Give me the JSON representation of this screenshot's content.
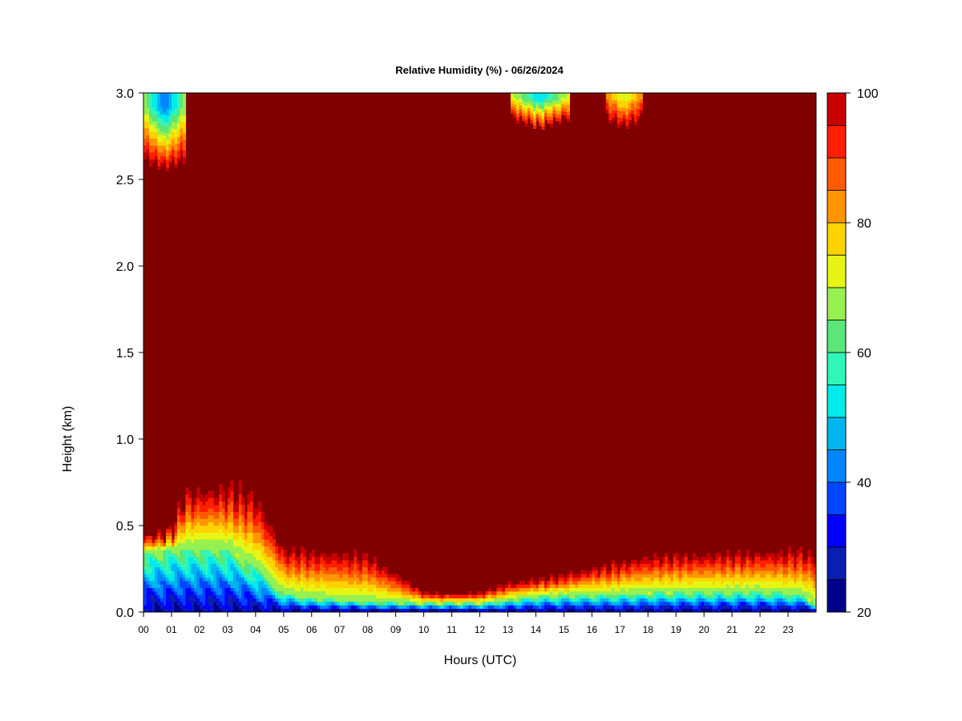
{
  "chart_data": {
    "type": "heatmap",
    "title": "Relative Humidity (%) - 06/26/2024",
    "xlabel": "Hours (UTC)",
    "ylabel": "Height (km)",
    "xlim": [
      0,
      24
    ],
    "ylim": [
      0.0,
      3.0
    ],
    "x_ticks": [
      "00",
      "01",
      "02",
      "03",
      "04",
      "05",
      "06",
      "07",
      "08",
      "09",
      "10",
      "11",
      "12",
      "13",
      "14",
      "15",
      "16",
      "17",
      "18",
      "19",
      "20",
      "21",
      "22",
      "23"
    ],
    "y_ticks": [
      "0.0",
      "0.5",
      "1.0",
      "1.5",
      "2.0",
      "2.5",
      "3.0"
    ],
    "colorbar": {
      "levels": [
        20,
        25,
        30,
        35,
        40,
        45,
        50,
        55,
        60,
        65,
        70,
        75,
        80,
        85,
        90,
        95,
        100
      ],
      "tick_labels": [
        "20",
        "40",
        "60",
        "80",
        "100"
      ],
      "colors": [
        "#00008c",
        "#0a1eb4",
        "#0000ff",
        "#0046ff",
        "#0087ff",
        "#00b4f0",
        "#00ebeb",
        "#32f5b9",
        "#5ae678",
        "#96f050",
        "#e6f514",
        "#ffd200",
        "#ff9600",
        "#ff5a00",
        "#ff1e00",
        "#c80000",
        "#800000"
      ]
    },
    "saturated_value": 100,
    "moist_layer_top_km": [
      [
        0.0,
        0.42
      ],
      [
        1.0,
        0.45
      ],
      [
        1.5,
        0.66
      ],
      [
        3.0,
        0.68
      ],
      [
        4.0,
        0.63
      ],
      [
        5.0,
        0.34
      ],
      [
        8.0,
        0.3
      ],
      [
        10.0,
        0.1
      ],
      [
        11.0,
        0.09
      ],
      [
        12.0,
        0.1
      ],
      [
        13.0,
        0.15
      ],
      [
        15.0,
        0.2
      ],
      [
        18.0,
        0.3
      ],
      [
        23.5,
        0.33
      ],
      [
        24.0,
        0.3
      ]
    ],
    "dry_layer_top_km": [
      [
        0.0,
        0.33
      ],
      [
        1.5,
        0.36
      ],
      [
        3.0,
        0.36
      ],
      [
        4.0,
        0.25
      ],
      [
        5.0,
        0.1
      ],
      [
        6.0,
        0.07
      ],
      [
        8.0,
        0.05
      ],
      [
        10.0,
        0.04
      ],
      [
        12.0,
        0.04
      ],
      [
        13.0,
        0.06
      ],
      [
        14.0,
        0.08
      ],
      [
        18.0,
        0.1
      ],
      [
        22.0,
        0.11
      ],
      [
        23.5,
        0.09
      ],
      [
        24.0,
        0.03
      ]
    ],
    "upper_dry_patches": [
      {
        "x_start": 0.0,
        "x_end": 1.5,
        "bottom_km": 2.55,
        "min_rh": 40
      },
      {
        "x_start": 13.1,
        "x_end": 15.2,
        "bottom_km": 2.79,
        "min_rh": 50
      },
      {
        "x_start": 16.5,
        "x_end": 17.8,
        "bottom_km": 2.79,
        "min_rh": 70
      }
    ]
  }
}
